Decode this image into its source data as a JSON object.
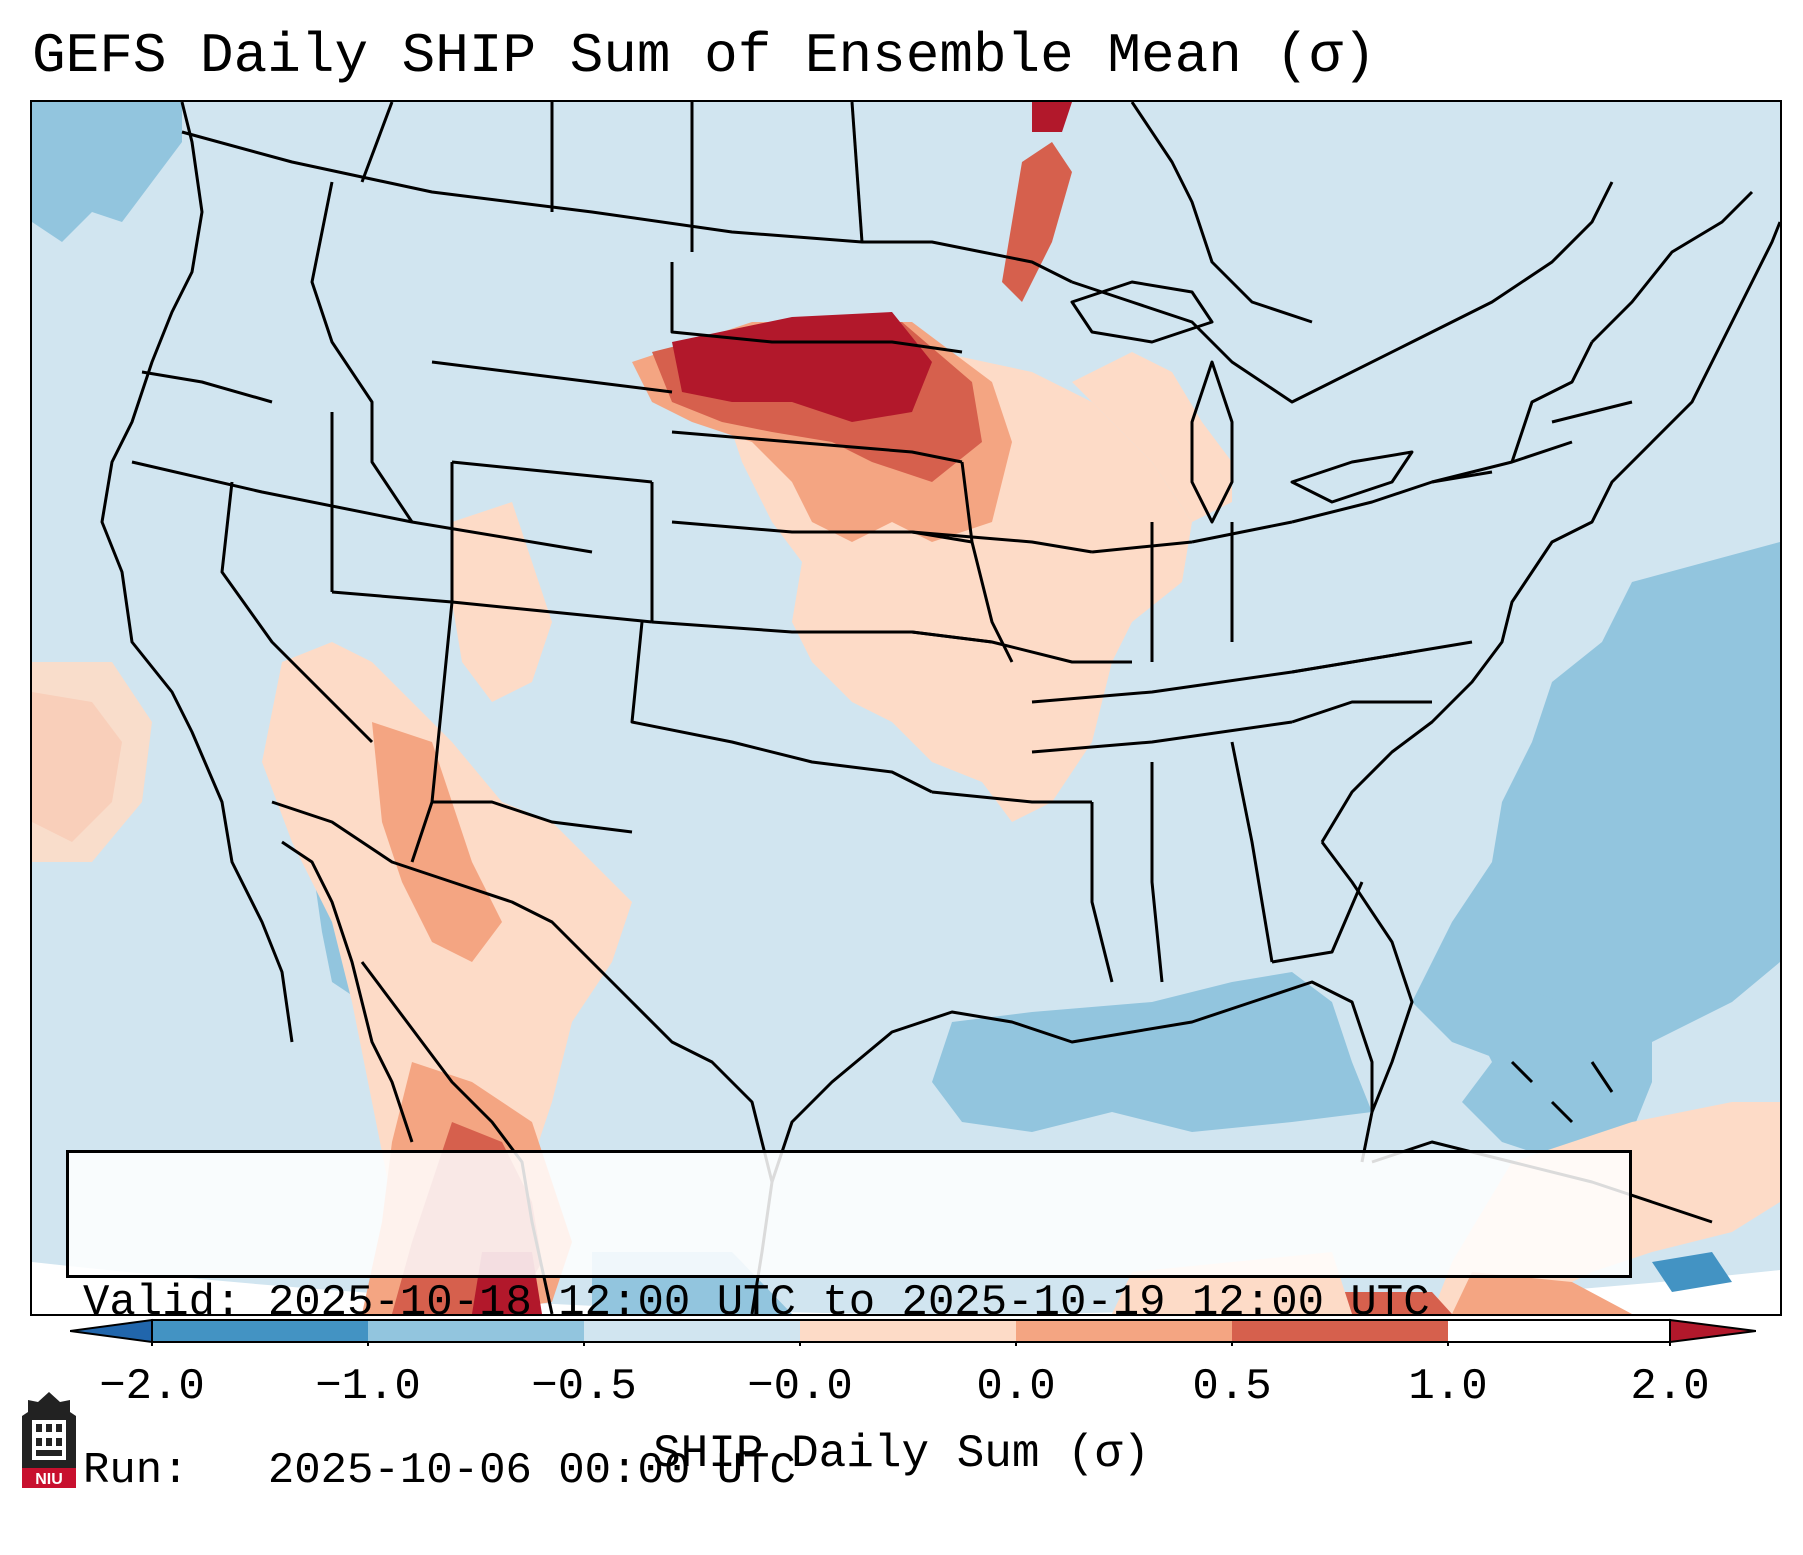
{
  "title": "GEFS Daily SHIP Sum of Ensemble Mean (σ)",
  "valid_line": "Valid: 2025-10-18 12:00 UTC to 2025-10-19 12:00 UTC",
  "run_line": "Run:   2025-10-06 00:00 UTC",
  "colorbar": {
    "label": "SHIP Daily Sum (σ)",
    "ticks": [
      "−2.0",
      "−1.0",
      "−0.5",
      "−0.0",
      "0.0",
      "0.5",
      "1.0",
      "2.0"
    ],
    "colors": [
      "#2166ac",
      "#4393c3",
      "#92c5de",
      "#d1e5f0",
      "#fddbc7",
      "#f4a582",
      "#d6604d",
      "#b2182b"
    ]
  },
  "logo": {
    "text": "NIU",
    "colors": {
      "dark": "#222222",
      "red": "#c8102e"
    }
  },
  "colors": {
    "very_high": "#b2182b",
    "high": "#d6604d",
    "moderate": "#f4a582",
    "slight": "#fddbc7",
    "near_zero": "#d1e5f0",
    "low": "#92c5de",
    "very_low": "#4393c3"
  },
  "map": {
    "projection_background": "#ffffff",
    "border_color": "#000000"
  }
}
